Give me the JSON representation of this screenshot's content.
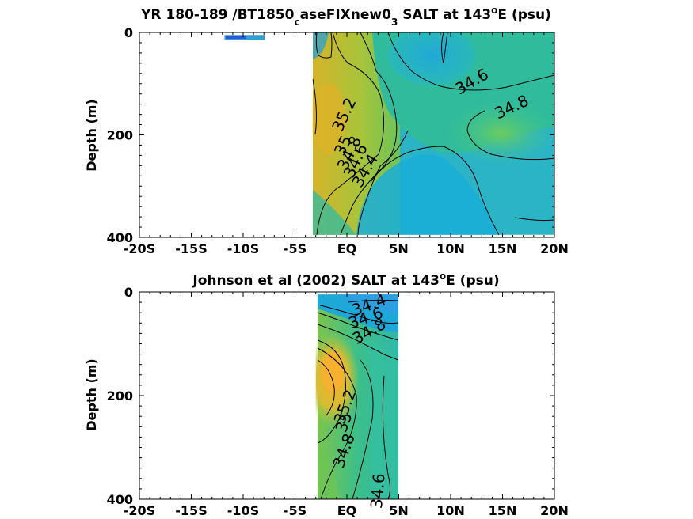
{
  "chart_data": [
    {
      "type": "contour",
      "title_parts": {
        "main": "YR 180-189 /BT1850",
        "sub1": "c",
        "mid": "aseFIXnew0",
        "sub2": "3",
        "post": " SALT at 143",
        "sup": "o",
        "end": "E (psu)"
      },
      "ylabel": "Depth (m)",
      "xlim": [
        -20,
        20
      ],
      "ylim": [
        400,
        0
      ],
      "x_ticks": [
        -20,
        -15,
        -10,
        -5,
        0,
        5,
        10,
        15,
        20
      ],
      "x_tick_labels": [
        "-20S",
        "-15S",
        "-10S",
        "-5S",
        "EQ",
        "5N",
        "10N",
        "15N",
        "20N"
      ],
      "y_ticks": [
        0,
        200,
        400
      ],
      "y_tick_labels": [
        "0",
        "200",
        "400"
      ],
      "data_extent": {
        "lat": [
          -3.3,
          20
        ],
        "depth": [
          0,
          395
        ]
      },
      "patch_extent": {
        "lat": [
          -11.8,
          -7.9
        ],
        "depth": [
          5,
          15
        ]
      },
      "contour_labels": [
        {
          "text": "35.2",
          "lat": 0.2,
          "depth": 165,
          "angle": -65
        },
        {
          "text": "35",
          "lat": 0.1,
          "depth": 225,
          "angle": -65
        },
        {
          "text": "34.8",
          "lat": 0.7,
          "depth": 240,
          "angle": -65
        },
        {
          "text": "34.6",
          "lat": 1.3,
          "depth": 255,
          "angle": -65
        },
        {
          "text": "34.4",
          "lat": 2.2,
          "depth": 275,
          "angle": -60
        },
        {
          "text": "34.6",
          "lat": 12.3,
          "depth": 105,
          "angle": -30
        },
        {
          "text": "34.8",
          "lat": 16.1,
          "depth": 155,
          "angle": -25
        }
      ]
    },
    {
      "type": "contour",
      "title_parts": {
        "main": "Johnson et al (2002) SALT at 143",
        "sup": "o",
        "end": "E (psu)"
      },
      "ylabel": "Depth (m)",
      "xlim": [
        -20,
        20
      ],
      "ylim": [
        400,
        0
      ],
      "x_ticks": [
        -20,
        -15,
        -10,
        -5,
        0,
        5,
        10,
        15,
        20
      ],
      "x_tick_labels": [
        "-20S",
        "-15S",
        "-10S",
        "-5S",
        "EQ",
        "5N",
        "10N",
        "15N",
        "20N"
      ],
      "y_ticks": [
        0,
        200,
        400
      ],
      "y_tick_labels": [
        "0",
        "200",
        "400"
      ],
      "data_extent": {
        "lat": [
          -3,
          5
        ],
        "depth": [
          5,
          400
        ]
      },
      "contour_labels": [
        {
          "text": "34.4",
          "lat": 2.3,
          "depth": 35,
          "angle": -20
        },
        {
          "text": "34.6",
          "lat": 2.0,
          "depth": 60,
          "angle": -20
        },
        {
          "text": "34.8",
          "lat": 2.4,
          "depth": 85,
          "angle": -30
        },
        {
          "text": "35.2",
          "lat": 0.3,
          "depth": 225,
          "angle": -70
        },
        {
          "text": "35",
          "lat": 0.2,
          "depth": 255,
          "angle": -70
        },
        {
          "text": "34.8",
          "lat": 0.2,
          "depth": 310,
          "angle": -70
        },
        {
          "text": "34.6",
          "lat": 3.5,
          "depth": 385,
          "angle": -85
        }
      ]
    }
  ]
}
